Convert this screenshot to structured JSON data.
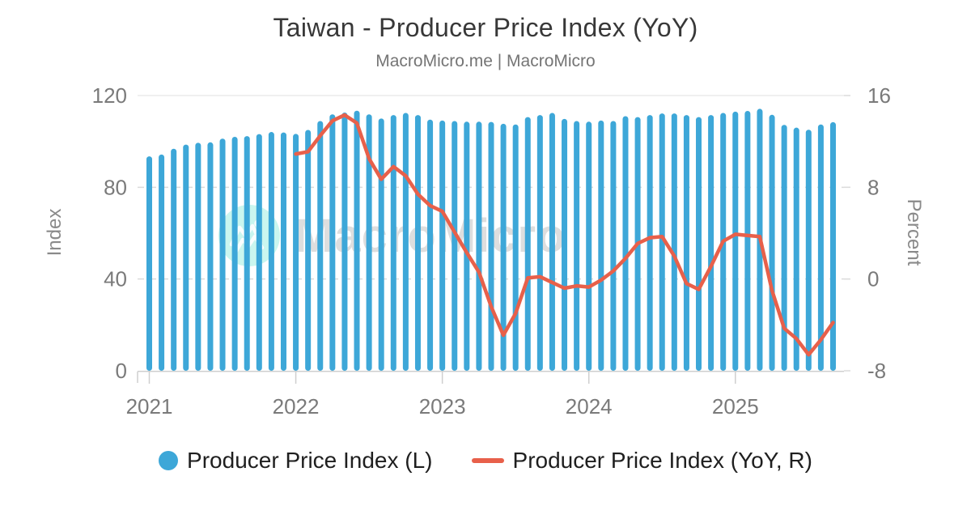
{
  "header": {
    "title": "Taiwan - Producer Price Index (YoY)",
    "subtitle": "MacroMicro.me | MacroMicro"
  },
  "watermark": {
    "text": "MacroMicro",
    "logo": "macromicro-mountain-logo"
  },
  "colors": {
    "bar": "#3DA7D8",
    "line": "#E8604A",
    "grid_dashed": "#DBDBDB",
    "grid_top": "#E6E6E6",
    "axis_line": "#CFCFCF",
    "tick_label": "#7A7A7A",
    "title": "#383838",
    "subtitle": "#757575",
    "legend_text": "#1F1F1F",
    "watermark_circle": "rgba(64,224,196,0.28)",
    "watermark_logo": "rgba(255,255,255,0.9)",
    "watermark_text": "rgba(0,0,0,0.13)"
  },
  "left_axis": {
    "title": "Index",
    "min": 0,
    "max": 120,
    "ticks": [
      0,
      40,
      80,
      120
    ]
  },
  "right_axis": {
    "title": "Percent",
    "min": -8,
    "max": 16,
    "ticks": [
      -8,
      0,
      8,
      16
    ]
  },
  "x_axis": {
    "years": [
      "2021",
      "2022",
      "2023",
      "2024",
      "2025"
    ]
  },
  "legend": {
    "items": [
      {
        "label": "Producer Price Index (L)",
        "marker": "circle"
      },
      {
        "label": "Producer Price Index (YoY, R)",
        "marker": "line"
      }
    ]
  },
  "chart_data": {
    "type": "combo",
    "title": "Taiwan - Producer Price Index (YoY)",
    "xlabel": "",
    "ylabel_left": "Index",
    "ylabel_right": "Percent",
    "left_ylim": [
      0,
      120
    ],
    "right_ylim": [
      -8,
      16
    ],
    "grid": "horizontal-dashed",
    "legend_position": "bottom",
    "categories": [
      "2021-01",
      "2021-02",
      "2021-03",
      "2021-04",
      "2021-05",
      "2021-06",
      "2021-07",
      "2021-08",
      "2021-09",
      "2021-10",
      "2021-11",
      "2021-12",
      "2022-01",
      "2022-02",
      "2022-03",
      "2022-04",
      "2022-05",
      "2022-06",
      "2022-07",
      "2022-08",
      "2022-09",
      "2022-10",
      "2022-11",
      "2022-12",
      "2023-01",
      "2023-02",
      "2023-03",
      "2023-04",
      "2023-05",
      "2023-06",
      "2023-07",
      "2023-08",
      "2023-09",
      "2023-10",
      "2023-11",
      "2023-12",
      "2024-01",
      "2024-02",
      "2024-03",
      "2024-04",
      "2024-05",
      "2024-06",
      "2024-07",
      "2024-08",
      "2024-09",
      "2024-10",
      "2024-11",
      "2024-12",
      "2025-01",
      "2025-02",
      "2025-03",
      "2025-04",
      "2025-05",
      "2025-06",
      "2025-07",
      "2025-08",
      "2025-09"
    ],
    "series": [
      {
        "name": "Producer Price Index (L)",
        "type": "bar",
        "axis": "left",
        "color": "#3DA7D8",
        "values": [
          93.5,
          94.3,
          96.8,
          98.6,
          99.4,
          99.6,
          101.2,
          102.0,
          102.3,
          103.2,
          104.1,
          103.9,
          103.3,
          105.0,
          108.9,
          111.8,
          112.6,
          113.4,
          111.8,
          110.0,
          111.5,
          112.4,
          111.5,
          109.5,
          109.1,
          108.9,
          108.6,
          108.6,
          108.5,
          107.7,
          107.4,
          110.6,
          111.5,
          112.4,
          109.8,
          108.9,
          108.6,
          109.1,
          108.9,
          111.0,
          110.6,
          111.5,
          112.2,
          112.2,
          111.5,
          110.6,
          111.5,
          112.4,
          113.0,
          113.3,
          114.2,
          111.6,
          107.2,
          106.0,
          105.1,
          107.4,
          108.4
        ]
      },
      {
        "name": "Producer Price Index (YoY, R)",
        "type": "line",
        "axis": "right",
        "color": "#E8604A",
        "values": [
          null,
          null,
          null,
          null,
          null,
          null,
          null,
          null,
          null,
          null,
          null,
          null,
          10.9,
          11.1,
          12.5,
          13.8,
          14.3,
          13.6,
          10.5,
          8.7,
          9.8,
          9.0,
          7.4,
          6.4,
          5.9,
          4.1,
          2.3,
          0.6,
          -2.4,
          -4.9,
          -3.0,
          0.1,
          0.2,
          -0.3,
          -0.8,
          -0.6,
          -0.7,
          -0.1,
          0.7,
          1.8,
          3.1,
          3.6,
          3.7,
          2.0,
          -0.4,
          -0.9,
          1.1,
          3.3,
          3.9,
          3.8,
          3.7,
          -1.0,
          -4.3,
          -5.2,
          -6.6,
          -5.3,
          -3.8
        ]
      }
    ]
  }
}
